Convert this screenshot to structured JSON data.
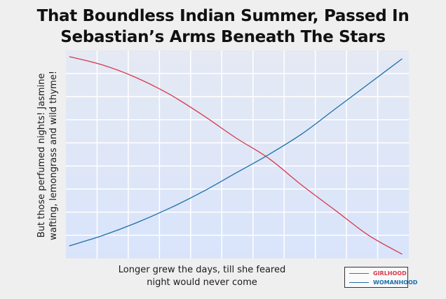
{
  "chart_data": {
    "type": "line",
    "title": [
      "That Boundless Indian Summer, Passed In",
      "Sebastian’s Arms Beneath The Stars"
    ],
    "xlabel": [
      "Longer grew the days, till she feared",
      "night would never come"
    ],
    "ylabel": [
      "But those perfumed nights! Jasmine",
      "wafting, lemongrass and wild thyme!"
    ],
    "x": [
      0,
      0.1,
      0.2,
      0.3,
      0.4,
      0.5,
      0.6,
      0.7,
      0.8,
      0.9,
      1.0
    ],
    "xlim": [
      -0.01,
      1.02
    ],
    "ylim": [
      0,
      1
    ],
    "grid": true,
    "legend_position": "bottom-right",
    "series": [
      {
        "name": "GIRLHOOD",
        "color": "#d8394a",
        "values": [
          0.97,
          0.93,
          0.87,
          0.79,
          0.69,
          0.58,
          0.48,
          0.35,
          0.23,
          0.11,
          0.02
        ]
      },
      {
        "name": "WOMANHOOD",
        "color": "#1d6fa8",
        "values": [
          0.06,
          0.11,
          0.17,
          0.24,
          0.32,
          0.41,
          0.5,
          0.6,
          0.72,
          0.84,
          0.96
        ]
      }
    ]
  }
}
